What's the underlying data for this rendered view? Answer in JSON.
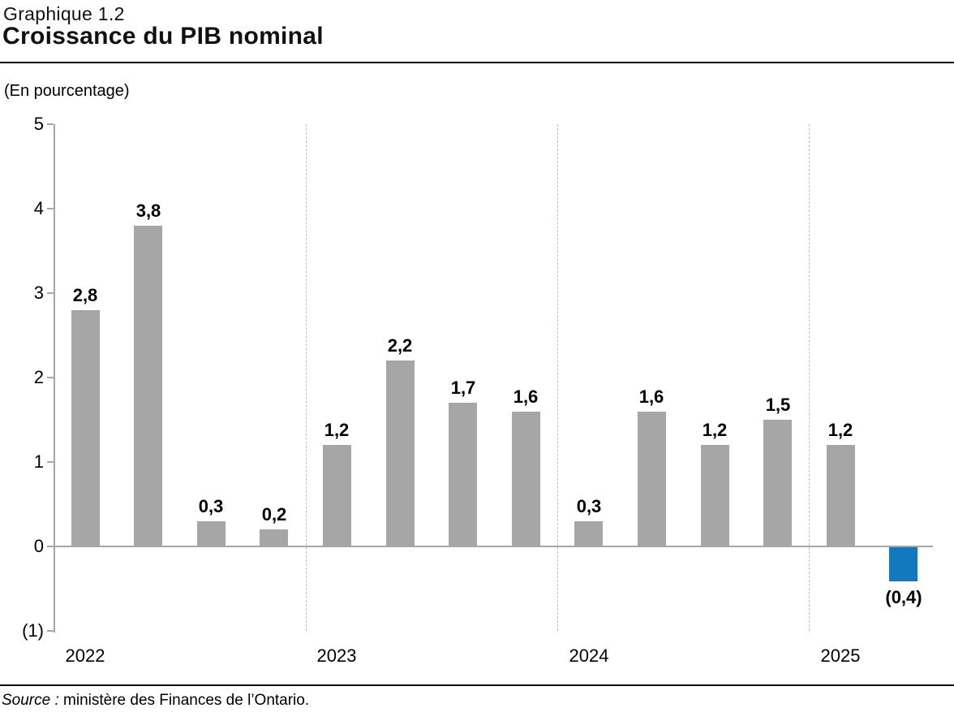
{
  "header": {
    "figure_label": "Graphique 1.2",
    "title": "Croissance du PIB nominal"
  },
  "source": {
    "prefix": "Source :",
    "text": " ministère des Finances de l’Ontario."
  },
  "colors": {
    "bar": "#a6a6a6",
    "highlight": "#1478be",
    "axis": "#a6a6a6",
    "separator": "#bfbfbf",
    "label_text": "#000000"
  },
  "chart_data": {
    "type": "bar",
    "title": "Croissance du PIB nominal",
    "ylabel": "(En pourcentage)",
    "ylim": [
      -1,
      5
    ],
    "yticks": [
      5,
      4,
      3,
      2,
      1,
      0,
      -1
    ],
    "ytick_labels": [
      "5",
      "4",
      "3",
      "2",
      "1",
      "0",
      "(1)"
    ],
    "grid": false,
    "legend": "none",
    "groups": [
      {
        "year": "2022",
        "values": [
          2.8,
          3.8,
          0.3,
          0.2
        ],
        "labels": [
          "2,8",
          "3,8",
          "0,3",
          "0,2"
        ]
      },
      {
        "year": "2023",
        "values": [
          1.2,
          2.2,
          1.7,
          1.6
        ],
        "labels": [
          "1,2",
          "2,2",
          "1,7",
          "1,6"
        ]
      },
      {
        "year": "2024",
        "values": [
          0.3,
          1.6,
          1.2,
          1.5
        ],
        "labels": [
          "0,3",
          "1,6",
          "1,2",
          "1,5"
        ]
      },
      {
        "year": "2025",
        "values": [
          1.2,
          -0.4
        ],
        "labels": [
          "1,2",
          "(0,4)"
        ]
      }
    ],
    "highlight": {
      "group": "2025",
      "index_in_group": 1,
      "note": "last bar drawn in blue"
    },
    "separators_between_years": true
  }
}
